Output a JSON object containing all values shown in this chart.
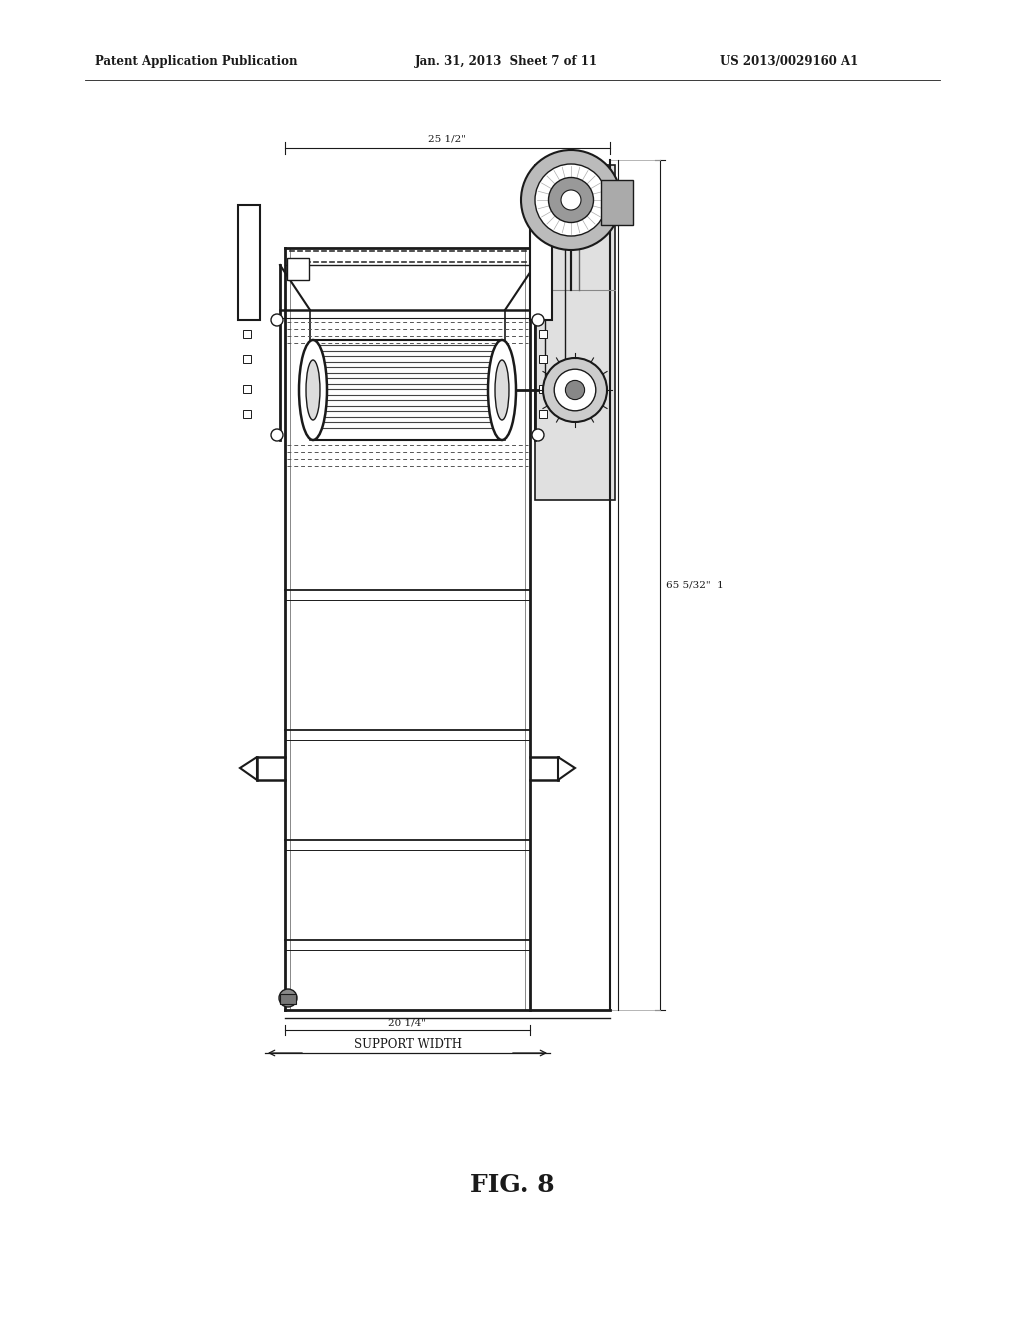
{
  "title": "FIG. 8",
  "patent_header_left": "Patent Application Publication",
  "patent_header_mid": "Jan. 31, 2013  Sheet 7 of 11",
  "patent_header_right": "US 2013/0029160 A1",
  "dim_top": "25 1/2\"",
  "dim_right": "65 5/32\"  1",
  "dim_bottom": "20 1/4\"",
  "dim_bottom_label": "SUPPORT WIDTH",
  "bg_color": "#ffffff",
  "line_color": "#1a1a1a",
  "gray_light": "#cccccc",
  "gray_med": "#999999",
  "gray_dark": "#555555"
}
